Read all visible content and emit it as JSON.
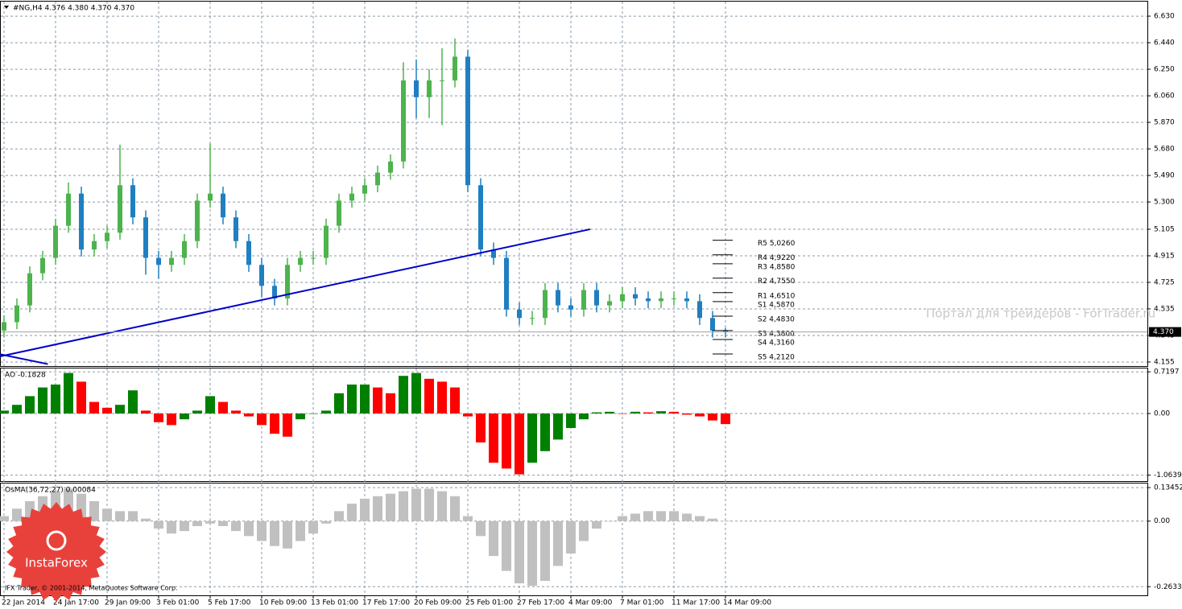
{
  "chart_data": [
    {
      "type": "candlestick",
      "title": "#NG,H4  4.376 4.380 4.370 4.370",
      "categories": [
        "22 Jan 2014",
        null,
        null,
        null,
        "24 Jan 17:00",
        null,
        null,
        null,
        "29 Jan 09:00",
        null,
        null,
        null,
        "3 Feb 01:00",
        null,
        null,
        null,
        "5 Feb 17:00",
        null,
        null,
        null,
        "10 Feb 09:00",
        null,
        null,
        null,
        "13 Feb 01:00",
        null,
        null,
        null,
        "17 Feb 17:00",
        null,
        null,
        null,
        "20 Feb 09:00",
        null,
        null,
        null,
        "25 Feb 01:00",
        null,
        null,
        null,
        "27 Feb 17:00",
        null,
        null,
        null,
        "4 Mar 09:00",
        null,
        null,
        null,
        "7 Mar 01:00",
        null,
        null,
        null,
        "11 Mar 17:00",
        null,
        null,
        null,
        "14 Mar 09:00"
      ],
      "open": [
        4.38,
        4.44,
        4.56,
        4.79,
        4.9,
        5.13,
        5.36,
        4.96,
        5.02,
        5.08,
        5.42,
        5.19,
        4.9,
        4.85,
        4.9,
        5.02,
        5.31,
        5.36,
        5.19,
        5.02,
        4.85,
        4.7,
        4.61,
        4.85,
        4.9,
        4.9,
        5.13,
        5.31,
        5.36,
        5.42,
        5.51,
        5.59,
        6.17,
        6.05,
        6.17,
        6.17,
        6.34,
        5.42,
        4.96,
        4.9,
        4.53,
        4.47,
        4.47,
        4.67,
        4.56,
        4.53,
        4.67,
        4.56,
        4.59,
        4.64,
        4.61,
        4.59,
        4.61,
        4.61,
        4.59,
        4.47,
        4.38
      ],
      "high": [
        4.49,
        4.61,
        4.84,
        4.95,
        5.18,
        5.44,
        5.41,
        5.07,
        5.13,
        5.71,
        5.47,
        5.24,
        4.95,
        4.95,
        5.07,
        5.36,
        5.72,
        5.41,
        5.24,
        5.07,
        4.9,
        4.75,
        4.9,
        4.95,
        4.95,
        5.18,
        5.36,
        5.41,
        5.47,
        5.56,
        5.64,
        6.3,
        6.32,
        6.25,
        6.4,
        6.47,
        6.39,
        5.47,
        5.01,
        4.95,
        4.58,
        4.52,
        4.72,
        4.72,
        4.61,
        4.72,
        4.72,
        4.64,
        4.69,
        4.69,
        4.66,
        4.66,
        4.66,
        4.66,
        4.64,
        4.52,
        4.4
      ],
      "low": [
        4.33,
        4.39,
        4.51,
        4.74,
        4.85,
        5.08,
        4.91,
        4.91,
        4.97,
        5.03,
        5.14,
        4.78,
        4.75,
        4.8,
        4.85,
        4.97,
        5.26,
        5.14,
        4.97,
        4.8,
        4.62,
        4.56,
        4.56,
        4.8,
        4.85,
        4.85,
        5.08,
        5.26,
        5.31,
        5.37,
        5.46,
        5.54,
        5.9,
        5.9,
        5.85,
        6.12,
        5.37,
        4.91,
        4.85,
        4.48,
        4.42,
        4.42,
        4.42,
        4.51,
        4.48,
        4.48,
        4.51,
        4.51,
        4.54,
        4.56,
        4.54,
        4.54,
        4.56,
        4.54,
        4.42,
        4.33,
        4.33
      ],
      "close": [
        4.44,
        4.56,
        4.79,
        4.9,
        5.13,
        5.36,
        4.96,
        5.02,
        5.08,
        5.42,
        5.19,
        4.9,
        4.85,
        4.9,
        5.02,
        5.31,
        5.36,
        5.19,
        5.02,
        4.85,
        4.7,
        4.61,
        4.85,
        4.9,
        4.9,
        5.13,
        5.31,
        5.36,
        5.42,
        5.51,
        5.59,
        6.17,
        6.05,
        6.17,
        6.17,
        6.34,
        5.42,
        4.96,
        4.9,
        4.53,
        4.47,
        4.47,
        4.67,
        4.56,
        4.53,
        4.67,
        4.56,
        4.59,
        4.64,
        4.61,
        4.59,
        4.61,
        4.61,
        4.59,
        4.47,
        4.38,
        4.37
      ],
      "up_color": "#4db34d",
      "down_color": "#1f7fc1",
      "ylim": [
        4.126,
        6.734
      ],
      "yticks": [
        {
          "value": 6.63,
          "label": "6.630"
        },
        {
          "value": 6.44,
          "label": "6.440"
        },
        {
          "value": 6.25,
          "label": "6.250"
        },
        {
          "value": 6.06,
          "label": "6.060"
        },
        {
          "value": 5.87,
          "label": "5.870"
        },
        {
          "value": 5.68,
          "label": "5.680"
        },
        {
          "value": 5.49,
          "label": "5.490"
        },
        {
          "value": 5.3,
          "label": "5.300"
        },
        5.105,
        4.915,
        4.725,
        4.535,
        4.345,
        4.155
      ],
      "grid": true,
      "current_price": {
        "value": 4.37,
        "label": "4.370"
      },
      "trendlines": [
        {
          "x": [
            -0.3,
            45.5
          ],
          "y": [
            4.195,
            5.105
          ],
          "color": "#0000c8"
        },
        {
          "x": [
            -0.3,
            3.4
          ],
          "y": [
            4.21,
            4.14
          ],
          "color": "#0000c8"
        }
      ],
      "pivot_levels": [
        {
          "value": 5.026,
          "label": "R5 5,0260"
        },
        {
          "value": 4.922,
          "label": "R4 4,9220"
        },
        {
          "value": 4.858,
          "label": "R3 4,8580"
        },
        {
          "value": 4.755,
          "label": "R2 4,7550"
        },
        {
          "value": 4.651,
          "label": "R1 4,6510"
        },
        {
          "value": 4.587,
          "label": "S1 4,5870"
        },
        {
          "value": 4.483,
          "label": "S2 4,4830"
        },
        {
          "value": 4.38,
          "label": "S3 4,3800"
        },
        {
          "value": 4.316,
          "label": "S4 4,3160"
        },
        {
          "value": 4.212,
          "label": "S5 4,2120"
        }
      ],
      "watermark": "Портал для трейдеров - ForTrader.ru"
    },
    {
      "type": "bar",
      "title": "AO -0.1828",
      "values": [
        0.05,
        0.15,
        0.3,
        0.45,
        0.5,
        0.7,
        0.55,
        0.2,
        0.1,
        0.15,
        0.4,
        0.05,
        -0.15,
        -0.2,
        -0.1,
        0.05,
        0.3,
        0.2,
        0.05,
        -0.05,
        -0.2,
        -0.35,
        -0.4,
        -0.1,
        0.0,
        0.05,
        0.35,
        0.5,
        0.5,
        0.45,
        0.35,
        0.65,
        0.7,
        0.6,
        0.55,
        0.45,
        -0.05,
        -0.5,
        -0.85,
        -0.95,
        -1.05,
        -0.85,
        -0.65,
        -0.45,
        -0.25,
        -0.1,
        0.02,
        0.03,
        0.0,
        0.03,
        0.02,
        0.04,
        0.03,
        -0.02,
        -0.05,
        -0.12,
        -0.1828
      ],
      "up_color": "#008000",
      "down_color": "#ff0000",
      "ylim": [
        -1.167,
        0.778
      ],
      "yticks": [
        0.7197,
        {
          "value": 0,
          "label": "0.00"
        },
        -1.0639
      ],
      "grid": true
    },
    {
      "type": "bar",
      "title": "OsMA(36,72,27) 0.00084",
      "values": [
        0.02,
        0.05,
        0.08,
        0.1,
        0.12,
        0.13,
        0.11,
        0.08,
        0.05,
        0.04,
        0.04,
        0.01,
        -0.03,
        -0.05,
        -0.04,
        -0.02,
        -0.01,
        -0.02,
        -0.04,
        -0.06,
        -0.08,
        -0.1,
        -0.11,
        -0.08,
        -0.05,
        -0.01,
        0.04,
        0.07,
        0.09,
        0.1,
        0.11,
        0.12,
        0.13,
        0.13,
        0.12,
        0.1,
        0.02,
        -0.06,
        -0.14,
        -0.2,
        -0.25,
        -0.26,
        -0.24,
        -0.18,
        -0.13,
        -0.08,
        -0.03,
        0.0,
        0.02,
        0.03,
        0.04,
        0.04,
        0.04,
        0.03,
        0.02,
        0.01,
        0.00084
      ],
      "color": "#c0c0c0",
      "ylim": [
        -0.298,
        0.151
      ],
      "yticks": [
        0.13452,
        {
          "value": 0,
          "label": "0.00"
        },
        -0.2633
      ],
      "grid": true
    }
  ],
  "footer": {
    "copyright": "IFX Trader, © 2001-2014, MetaQuotes Software Corp.",
    "logo": "InstaForex"
  }
}
